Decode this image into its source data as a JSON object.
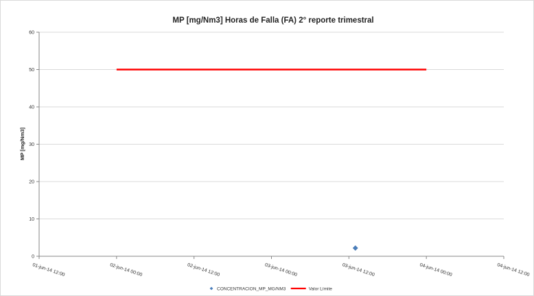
{
  "chart_data": {
    "type": "scatter",
    "title": "MP [mg/Nm3] Horas de Falla (FA) 2° reporte trimestral",
    "xlabel": "",
    "ylabel": "MP [mg/Nm3]",
    "xlim": [
      "2014-06-01 12:00",
      "2014-06-04 12:00"
    ],
    "ylim": [
      0,
      60
    ],
    "y_ticks": [
      "0",
      "10",
      "20",
      "30",
      "40",
      "50",
      "60"
    ],
    "x_ticks": [
      "01-jun-14 12:00",
      "02-jun-14 00:00",
      "02-jun-14 12:00",
      "03-jun-14 00:00",
      "03-jun-14 12:00",
      "04-jun-14 00:00",
      "04-jun-14 12:00"
    ],
    "grid": true,
    "legend_position": "bottom",
    "series": [
      {
        "name": "CONCENTRACION_MP_MG/NM3",
        "kind": "scatter",
        "marker": "diamond",
        "color": "#4a7ebb",
        "x": [
          "2014-06-03 13:00"
        ],
        "y": [
          2.2
        ]
      },
      {
        "name": "Valor Límite",
        "kind": "line",
        "color": "#ff0000",
        "x": [
          "2014-06-02 00:00",
          "2014-06-04 00:00"
        ],
        "y": [
          50,
          50
        ]
      }
    ]
  }
}
